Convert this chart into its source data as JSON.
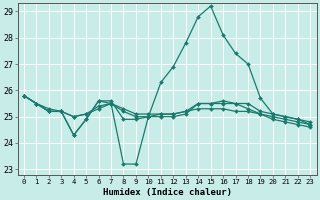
{
  "xlabel": "Humidex (Indice chaleur)",
  "xlim": [
    -0.5,
    23.5
  ],
  "ylim": [
    22.8,
    29.3
  ],
  "yticks": [
    23,
    24,
    25,
    26,
    27,
    28,
    29
  ],
  "xticks": [
    0,
    1,
    2,
    3,
    4,
    5,
    6,
    7,
    8,
    9,
    10,
    11,
    12,
    13,
    14,
    15,
    16,
    17,
    18,
    19,
    20,
    21,
    22,
    23
  ],
  "bg_color": "#c8ece8",
  "grid_color": "#ffffff",
  "line_color": "#1a7a6e",
  "lines": [
    {
      "x": [
        0,
        1,
        2,
        3,
        4,
        5,
        6,
        7,
        8,
        9,
        10,
        11,
        12,
        13,
        14,
        15,
        16,
        17,
        18,
        19,
        20,
        21,
        22,
        23
      ],
      "y": [
        25.8,
        25.5,
        25.2,
        25.2,
        24.3,
        24.9,
        25.6,
        25.6,
        24.9,
        24.9,
        25.0,
        25.1,
        25.1,
        25.2,
        25.5,
        25.5,
        25.6,
        25.5,
        25.5,
        25.2,
        25.1,
        25.0,
        24.9,
        24.8
      ]
    },
    {
      "x": [
        0,
        1,
        2,
        3,
        4,
        5,
        6,
        7,
        8,
        9,
        10,
        11,
        12,
        13,
        14,
        15,
        16,
        17,
        18,
        19,
        20,
        21,
        22,
        23
      ],
      "y": [
        25.8,
        25.5,
        25.2,
        25.2,
        25.0,
        25.1,
        25.3,
        25.5,
        25.3,
        25.1,
        25.1,
        25.1,
        25.1,
        25.2,
        25.3,
        25.3,
        25.3,
        25.2,
        25.2,
        25.1,
        25.0,
        24.9,
        24.8,
        24.7
      ]
    },
    {
      "x": [
        0,
        1,
        2,
        3,
        4,
        5,
        6,
        7,
        8,
        9,
        10,
        11,
        12,
        13,
        14,
        15,
        16,
        17,
        18,
        19,
        20,
        21,
        22,
        23
      ],
      "y": [
        25.8,
        25.5,
        25.3,
        25.2,
        24.3,
        24.9,
        25.6,
        25.5,
        23.2,
        23.2,
        25.0,
        26.3,
        26.9,
        27.8,
        28.8,
        29.2,
        28.1,
        27.4,
        27.0,
        25.7,
        25.1,
        25.0,
        24.9,
        24.7
      ]
    },
    {
      "x": [
        0,
        1,
        2,
        3,
        4,
        5,
        6,
        7,
        8,
        9,
        10,
        11,
        12,
        13,
        14,
        15,
        16,
        17,
        18,
        19,
        20,
        21,
        22,
        23
      ],
      "y": [
        25.8,
        25.5,
        25.2,
        25.2,
        25.0,
        25.1,
        25.4,
        25.5,
        25.2,
        25.0,
        25.0,
        25.0,
        25.0,
        25.1,
        25.5,
        25.5,
        25.5,
        25.5,
        25.3,
        25.1,
        24.9,
        24.8,
        24.7,
        24.6
      ]
    }
  ]
}
